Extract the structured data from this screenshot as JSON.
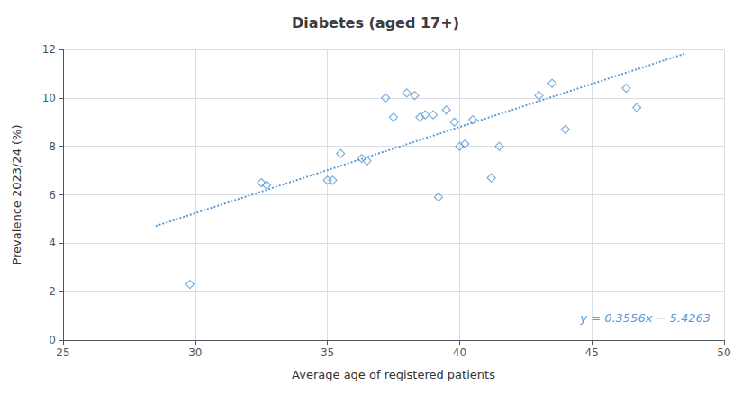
{
  "chart_data": {
    "type": "scatter",
    "title": "Diabetes (aged 17+)",
    "x_label": "Average age of registered patients",
    "y_label": "Prevalence 2023/24 (%)",
    "xlim": [
      25,
      50
    ],
    "ylim": [
      0,
      12
    ],
    "xticks": [
      25,
      30,
      35,
      40,
      45,
      50
    ],
    "yticks": [
      0,
      2,
      4,
      6,
      8,
      10,
      12
    ],
    "grid": true,
    "series": [
      {
        "type": "scatter",
        "marker": "diamond",
        "color": "#5b9bd5",
        "x": [
          29.8,
          32.5,
          32.7,
          35.0,
          35.2,
          35.5,
          36.3,
          36.5,
          37.2,
          37.5,
          38.0,
          38.3,
          38.5,
          38.7,
          39.0,
          39.2,
          39.5,
          39.8,
          40.0,
          40.2,
          40.5,
          41.2,
          41.5,
          43.0,
          43.5,
          44.0,
          46.3,
          46.7
        ],
        "values": [
          2.3,
          6.5,
          6.4,
          6.6,
          6.6,
          7.7,
          7.5,
          7.4,
          10.0,
          9.2,
          10.2,
          10.1,
          9.2,
          9.3,
          9.3,
          5.9,
          9.5,
          9.0,
          8.0,
          8.1,
          9.1,
          6.7,
          8.0,
          10.1,
          10.6,
          8.7,
          10.4,
          9.6
        ]
      },
      {
        "type": "line",
        "line_style": "dotted",
        "color": "#5b9bd5",
        "x": [
          28.5,
          48.5
        ],
        "values": [
          4.7083,
          11.8203
        ]
      }
    ],
    "annotations": [
      {
        "text": "y = 0.3556x − 5.4263",
        "color": "#5b9bd5"
      }
    ]
  }
}
